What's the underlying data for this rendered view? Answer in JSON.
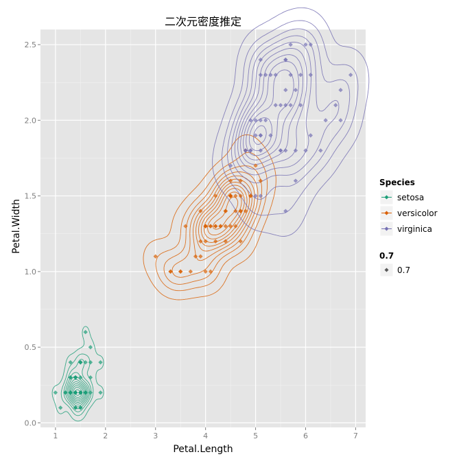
{
  "chart_data": {
    "type": "scatter",
    "title": "二次元密度推定",
    "xlabel": "Petal.Length",
    "ylabel": "Petal.Width",
    "xlim": [
      0.7,
      7.2
    ],
    "ylim": [
      -0.03,
      2.6
    ],
    "x_ticks": [
      1,
      2,
      3,
      4,
      5,
      6,
      7
    ],
    "y_ticks": [
      0.0,
      0.5,
      1.0,
      1.5,
      2.0,
      2.5
    ],
    "x_tick_labels": [
      "1",
      "2",
      "3",
      "4",
      "5",
      "6",
      "7"
    ],
    "y_tick_labels": [
      "0.0",
      "0.5",
      "1.0",
      "1.5",
      "2.0",
      "2.5"
    ],
    "grid": true,
    "legend_position": "right",
    "overlay": "2d density contours per species",
    "series": [
      {
        "name": "setosa",
        "color": "#1b9e77",
        "points": [
          [
            1.4,
            0.2
          ],
          [
            1.4,
            0.2
          ],
          [
            1.3,
            0.2
          ],
          [
            1.5,
            0.2
          ],
          [
            1.4,
            0.2
          ],
          [
            1.7,
            0.4
          ],
          [
            1.4,
            0.3
          ],
          [
            1.5,
            0.2
          ],
          [
            1.4,
            0.2
          ],
          [
            1.5,
            0.1
          ],
          [
            1.5,
            0.2
          ],
          [
            1.6,
            0.2
          ],
          [
            1.4,
            0.1
          ],
          [
            1.1,
            0.1
          ],
          [
            1.2,
            0.2
          ],
          [
            1.5,
            0.4
          ],
          [
            1.3,
            0.4
          ],
          [
            1.4,
            0.3
          ],
          [
            1.7,
            0.3
          ],
          [
            1.5,
            0.3
          ],
          [
            1.7,
            0.2
          ],
          [
            1.5,
            0.4
          ],
          [
            1.0,
            0.2
          ],
          [
            1.7,
            0.5
          ],
          [
            1.9,
            0.2
          ],
          [
            1.6,
            0.2
          ],
          [
            1.6,
            0.4
          ],
          [
            1.5,
            0.2
          ],
          [
            1.4,
            0.2
          ],
          [
            1.6,
            0.2
          ],
          [
            1.6,
            0.2
          ],
          [
            1.5,
            0.4
          ],
          [
            1.5,
            0.1
          ],
          [
            1.4,
            0.2
          ],
          [
            1.5,
            0.2
          ],
          [
            1.2,
            0.2
          ],
          [
            1.3,
            0.2
          ],
          [
            1.4,
            0.1
          ],
          [
            1.3,
            0.2
          ],
          [
            1.5,
            0.2
          ],
          [
            1.3,
            0.3
          ],
          [
            1.3,
            0.3
          ],
          [
            1.3,
            0.2
          ],
          [
            1.6,
            0.6
          ],
          [
            1.9,
            0.4
          ],
          [
            1.4,
            0.3
          ],
          [
            1.6,
            0.2
          ],
          [
            1.4,
            0.2
          ],
          [
            1.5,
            0.2
          ],
          [
            1.4,
            0.2
          ]
        ]
      },
      {
        "name": "versicolor",
        "color": "#d95f02",
        "points": [
          [
            4.7,
            1.4
          ],
          [
            4.5,
            1.5
          ],
          [
            4.9,
            1.5
          ],
          [
            4.0,
            1.3
          ],
          [
            4.6,
            1.5
          ],
          [
            4.5,
            1.3
          ],
          [
            4.7,
            1.6
          ],
          [
            3.3,
            1.0
          ],
          [
            4.6,
            1.3
          ],
          [
            3.9,
            1.4
          ],
          [
            3.5,
            1.0
          ],
          [
            4.2,
            1.5
          ],
          [
            4.0,
            1.0
          ],
          [
            4.7,
            1.4
          ],
          [
            3.6,
            1.3
          ],
          [
            4.4,
            1.4
          ],
          [
            4.5,
            1.5
          ],
          [
            4.1,
            1.0
          ],
          [
            4.5,
            1.5
          ],
          [
            3.9,
            1.1
          ],
          [
            4.8,
            1.8
          ],
          [
            4.0,
            1.3
          ],
          [
            4.9,
            1.5
          ],
          [
            4.7,
            1.2
          ],
          [
            4.3,
            1.3
          ],
          [
            4.4,
            1.4
          ],
          [
            4.8,
            1.4
          ],
          [
            5.0,
            1.7
          ],
          [
            4.5,
            1.5
          ],
          [
            3.5,
            1.0
          ],
          [
            3.8,
            1.1
          ],
          [
            3.7,
            1.0
          ],
          [
            3.9,
            1.2
          ],
          [
            5.1,
            1.6
          ],
          [
            4.5,
            1.5
          ],
          [
            4.5,
            1.6
          ],
          [
            4.7,
            1.5
          ],
          [
            4.4,
            1.3
          ],
          [
            4.1,
            1.3
          ],
          [
            4.0,
            1.3
          ],
          [
            4.4,
            1.2
          ],
          [
            4.6,
            1.4
          ],
          [
            4.0,
            1.2
          ],
          [
            3.3,
            1.0
          ],
          [
            4.2,
            1.3
          ],
          [
            4.2,
            1.2
          ],
          [
            4.2,
            1.3
          ],
          [
            4.3,
            1.3
          ],
          [
            3.0,
            1.1
          ],
          [
            4.1,
            1.3
          ]
        ]
      },
      {
        "name": "virginica",
        "color": "#7570b3",
        "points": [
          [
            6.0,
            2.5
          ],
          [
            5.1,
            1.9
          ],
          [
            5.9,
            2.1
          ],
          [
            5.6,
            1.8
          ],
          [
            5.8,
            2.2
          ],
          [
            6.6,
            2.1
          ],
          [
            4.5,
            1.7
          ],
          [
            6.3,
            1.8
          ],
          [
            5.8,
            1.8
          ],
          [
            6.1,
            2.5
          ],
          [
            5.1,
            2.0
          ],
          [
            5.3,
            1.9
          ],
          [
            5.5,
            2.1
          ],
          [
            5.0,
            2.0
          ],
          [
            5.1,
            2.4
          ],
          [
            5.3,
            2.3
          ],
          [
            5.5,
            1.8
          ],
          [
            6.7,
            2.2
          ],
          [
            6.9,
            2.3
          ],
          [
            5.0,
            1.5
          ],
          [
            5.7,
            2.3
          ],
          [
            4.9,
            2.0
          ],
          [
            6.7,
            2.0
          ],
          [
            4.9,
            1.8
          ],
          [
            5.7,
            2.1
          ],
          [
            6.0,
            1.8
          ],
          [
            4.8,
            1.8
          ],
          [
            4.9,
            1.8
          ],
          [
            5.6,
            2.1
          ],
          [
            5.8,
            1.6
          ],
          [
            6.1,
            1.9
          ],
          [
            6.4,
            2.0
          ],
          [
            5.6,
            2.2
          ],
          [
            5.1,
            1.5
          ],
          [
            5.6,
            1.4
          ],
          [
            6.1,
            2.3
          ],
          [
            5.6,
            2.4
          ],
          [
            5.5,
            1.8
          ],
          [
            4.8,
            1.8
          ],
          [
            5.4,
            2.1
          ],
          [
            5.6,
            2.4
          ],
          [
            5.1,
            2.3
          ],
          [
            5.1,
            1.9
          ],
          [
            5.9,
            2.3
          ],
          [
            5.7,
            2.5
          ],
          [
            5.2,
            2.3
          ],
          [
            5.0,
            1.9
          ],
          [
            5.2,
            2.0
          ],
          [
            5.4,
            2.3
          ],
          [
            5.1,
            1.8
          ]
        ]
      }
    ],
    "legend": {
      "species_title": "Species",
      "species": [
        "setosa",
        "versicolor",
        "virginica"
      ],
      "alpha_title": "0.7",
      "alpha_label": "0.7",
      "alpha_color": "#595959"
    }
  }
}
